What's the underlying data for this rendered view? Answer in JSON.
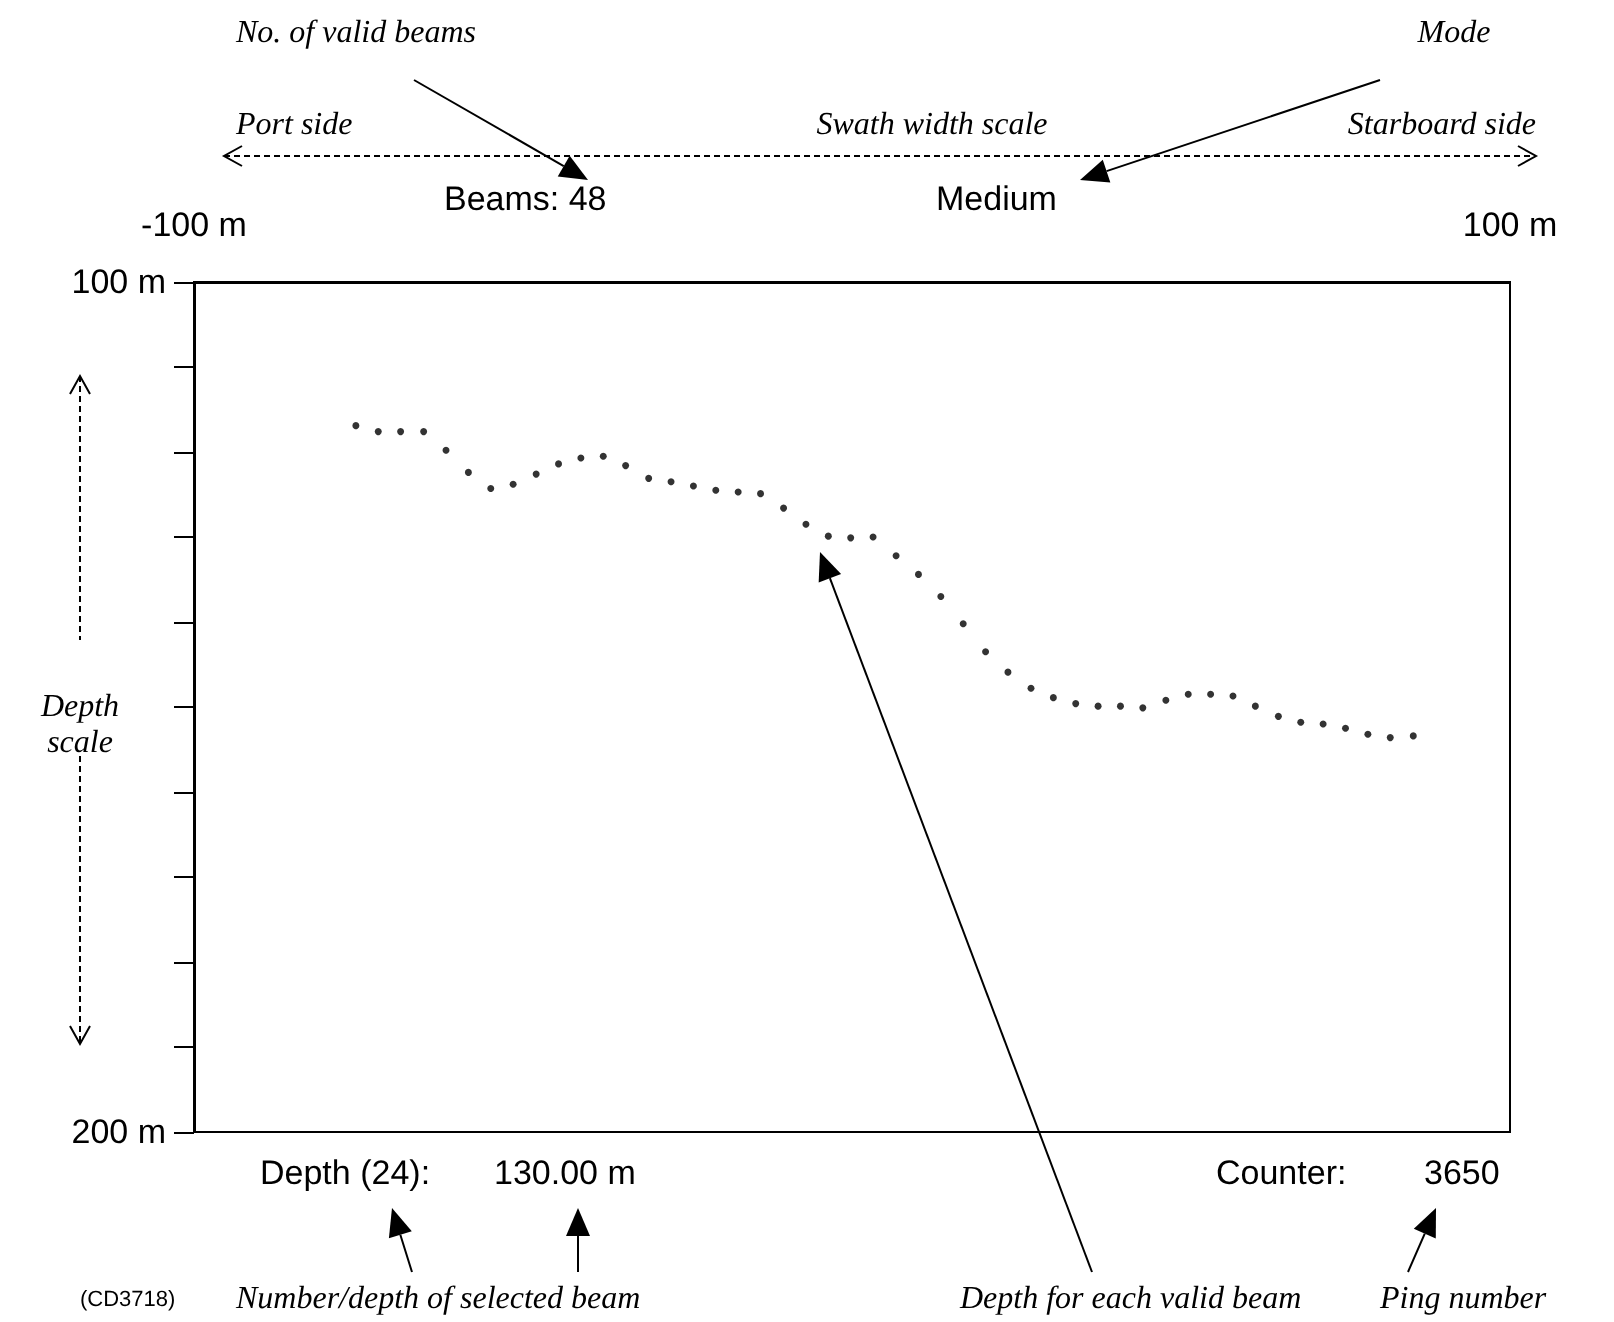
{
  "chart_data": {
    "type": "scatter",
    "marker": "circle",
    "grid": false,
    "x": [
      -75.4,
      -72.0,
      -68.6,
      -65.1,
      -61.7,
      -58.3,
      -54.9,
      -51.5,
      -48.0,
      -44.6,
      -41.2,
      -37.8,
      -34.4,
      -30.9,
      -27.5,
      -24.1,
      -20.7,
      -17.3,
      -13.9,
      -10.4,
      -7.0,
      -3.6,
      -0.2,
      3.2,
      6.7,
      10.1,
      13.5,
      16.9,
      20.3,
      23.7,
      27.2,
      30.6,
      34.0,
      37.4,
      40.8,
      44.2,
      47.7,
      51.1,
      54.5,
      57.9,
      61.3,
      64.8,
      68.2,
      71.6,
      75.0,
      78.4,
      81.8,
      85.3
    ],
    "series": [
      {
        "color": "#000000",
        "values": [
          116.9,
          117.6,
          117.6,
          117.6,
          119.8,
          122.4,
          124.3,
          123.8,
          122.6,
          121.4,
          120.7,
          120.5,
          121.6,
          123.1,
          123.5,
          124.0,
          124.5,
          124.7,
          124.9,
          126.6,
          128.5,
          129.9,
          130.1,
          130.0,
          132.2,
          134.4,
          137.0,
          140.2,
          143.5,
          145.9,
          147.8,
          148.9,
          149.6,
          149.9,
          149.9,
          150.1,
          149.2,
          148.5,
          148.5,
          148.7,
          149.9,
          151.1,
          151.8,
          152.0,
          152.5,
          153.2,
          153.6,
          153.4
        ]
      }
    ],
    "xlim": [
      -100,
      100
    ],
    "xticks": [
      {
        "value": -100,
        "label": "-100 m"
      },
      {
        "value": 100,
        "label": "100 m"
      }
    ],
    "ylim": [
      200,
      100
    ],
    "yticks": [
      {
        "value": 100,
        "label": "100 m"
      },
      {
        "value": 110,
        "label": null
      },
      {
        "value": 120,
        "label": null
      },
      {
        "value": 130,
        "label": null
      },
      {
        "value": 140,
        "label": null
      },
      {
        "value": 150,
        "label": null
      },
      {
        "value": 160,
        "label": null
      },
      {
        "value": 170,
        "label": null
      },
      {
        "value": 180,
        "label": null
      },
      {
        "value": 190,
        "label": null
      },
      {
        "value": 200,
        "label": "200 m"
      }
    ],
    "annotations": [
      "No. of valid beams",
      "Mode",
      "Port side",
      "Swath width scale",
      "Starboard side",
      "Beams:  48",
      "Medium",
      "Depth scale",
      "Depth (24):",
      "130.00 m",
      "Counter:",
      "3650",
      "(CD3718)",
      "Number/depth of selected beam",
      "Depth for each valid beam",
      "Ping number"
    ]
  }
}
